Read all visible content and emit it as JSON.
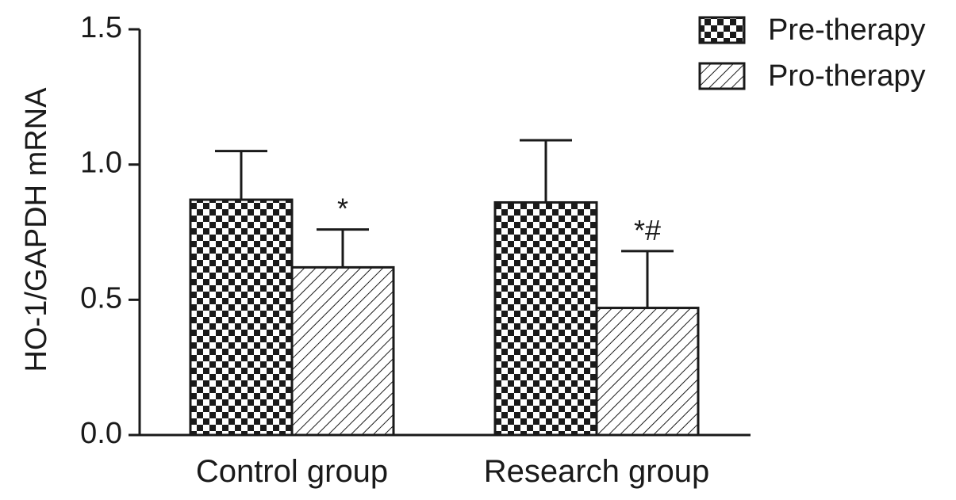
{
  "chart_data": {
    "type": "bar",
    "title": "",
    "xlabel": "",
    "ylabel": "HO-1/GAPDH mRNA",
    "ylim": [
      0,
      1.5
    ],
    "yticks": [
      "0.0",
      "0.5",
      "1.0",
      "1.5"
    ],
    "categories": [
      "Control group",
      "Research group"
    ],
    "series": [
      {
        "name": "Pre-therapy",
        "pattern": "checkerboard",
        "values": [
          0.87,
          0.86
        ],
        "error": [
          0.18,
          0.23
        ],
        "annotations": [
          "",
          ""
        ]
      },
      {
        "name": "Pro-therapy",
        "pattern": "diagonal-hatch",
        "values": [
          0.62,
          0.47
        ],
        "error": [
          0.14,
          0.21
        ],
        "annotations": [
          "*",
          "*#"
        ]
      }
    ],
    "legend": "top-right",
    "grid": false
  },
  "colors": {
    "ink": "#1a1a1a",
    "background": "#ffffff"
  }
}
